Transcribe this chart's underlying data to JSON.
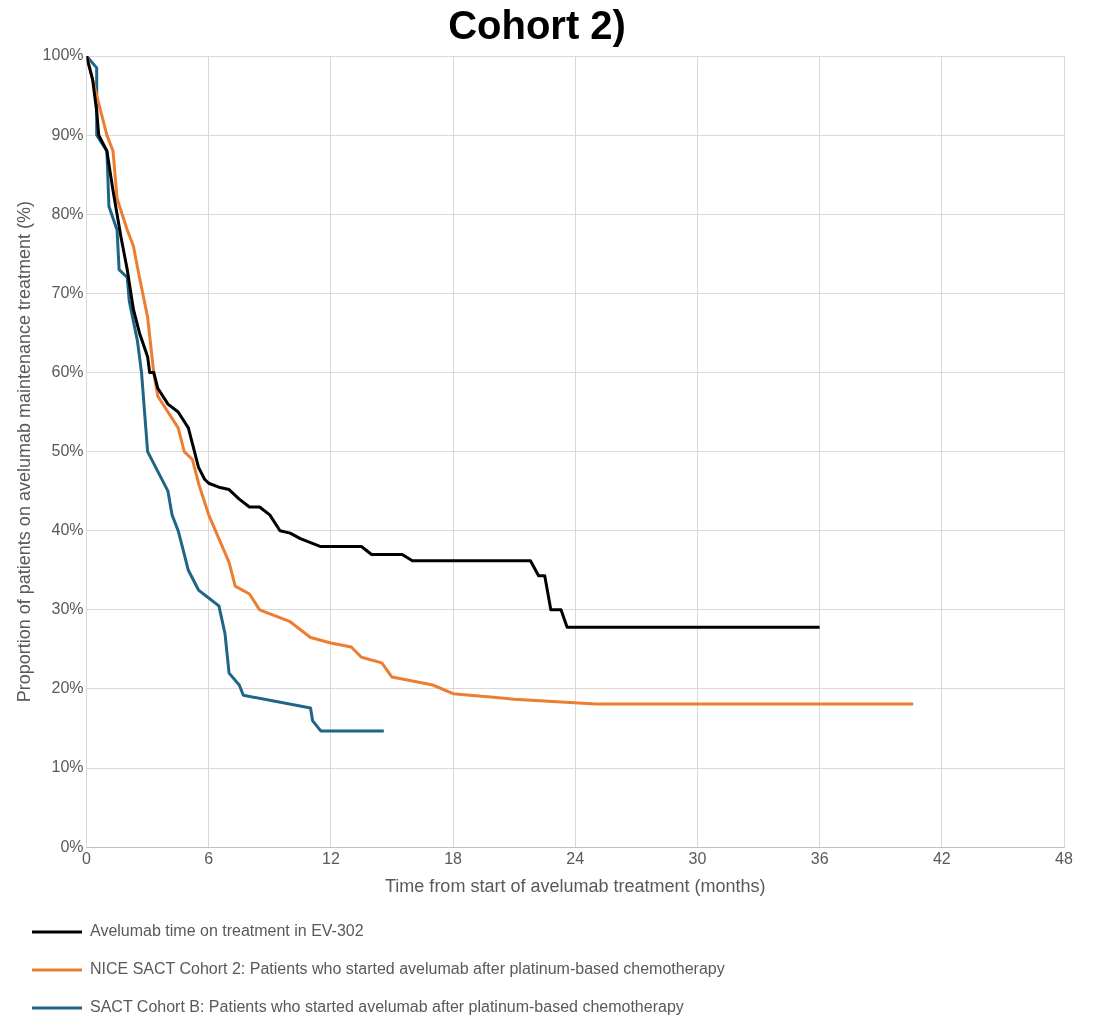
{
  "chart_data": {
    "type": "line",
    "title": "Cohort 2)",
    "xlabel": "Time from start of avelumab treatment (months)",
    "ylabel": "Proportion of patients on avelumab maintenance treatment (%)",
    "xlim": [
      0,
      48
    ],
    "xticks": [
      0,
      6,
      12,
      18,
      24,
      30,
      36,
      42,
      48
    ],
    "ylim": [
      0,
      100
    ],
    "yticks": [
      {
        "value": 0,
        "label": "0%"
      },
      {
        "value": 10,
        "label": "10%"
      },
      {
        "value": 20,
        "label": "20%"
      },
      {
        "value": 30,
        "label": "30%"
      },
      {
        "value": 40,
        "label": "40%"
      },
      {
        "value": 50,
        "label": "50%"
      },
      {
        "value": 60,
        "label": "60%"
      },
      {
        "value": 70,
        "label": "70%"
      },
      {
        "value": 80,
        "label": "80%"
      },
      {
        "value": 90,
        "label": "90%"
      },
      {
        "value": 100,
        "label": "100%"
      }
    ],
    "grid": true,
    "legend": "bottom",
    "marker": "none",
    "line_style": "solid",
    "series": [
      {
        "name": "Avelumab time on treatment in EV-302",
        "color": "#000000",
        "x": [
          0,
          0.3,
          0.5,
          0.6,
          1,
          1.3,
          1.5,
          1.7,
          2,
          2.3,
          2.6,
          3,
          3.1,
          3.3,
          3.5,
          4,
          4.5,
          5,
          5.2,
          5.5,
          5.8,
          6,
          6.5,
          7,
          7.5,
          8,
          8.5,
          9,
          9.5,
          10,
          10.5,
          11.5,
          13.5,
          14,
          15.5,
          16,
          21.8,
          22.2,
          22.5,
          22.8,
          23.3,
          23.6,
          36
        ],
        "values": [
          100,
          97,
          93,
          90,
          88,
          83,
          80,
          77,
          73,
          68,
          65,
          62,
          60,
          60,
          58,
          56,
          55,
          53,
          51,
          48,
          46.5,
          46,
          45.5,
          45.2,
          44,
          43,
          43,
          42,
          40,
          39.7,
          39,
          38,
          38,
          37,
          37,
          36.2,
          36.2,
          34.3,
          34.3,
          30,
          30,
          27.8,
          27.8
        ]
      },
      {
        "name": "NICE SACT Cohort 2: Patients who started avelumab after platinum-based chemotherapy",
        "color": "#ed7d31",
        "x": [
          0,
          0.5,
          1,
          1.3,
          1.5,
          2,
          2.3,
          2.6,
          3,
          3.3,
          3.5,
          4,
          4.5,
          4.8,
          5.2,
          5.5,
          6,
          6.5,
          7,
          7.3,
          8,
          8.5,
          10,
          11,
          12,
          13,
          13.5,
          14.5,
          15,
          17,
          18,
          21,
          25,
          40.6
        ],
        "values": [
          100,
          95,
          90,
          88,
          82,
          78,
          76,
          72,
          67,
          60,
          57,
          55,
          53,
          50,
          49,
          46,
          42,
          39,
          36,
          33,
          32,
          30,
          28.5,
          26.5,
          25.8,
          25.3,
          24,
          23.3,
          21.5,
          20.5,
          19.4,
          18.7,
          18.1,
          18.1
        ]
      },
      {
        "name": "SACT Cohort B: Patients who started avelumab after platinum-based chemotherapy",
        "color": "#1f6587",
        "x": [
          0,
          0.5,
          0.5,
          1,
          1.1,
          1.5,
          1.6,
          2,
          2.1,
          2.5,
          2.7,
          3,
          3.5,
          4,
          4.2,
          4.5,
          4.8,
          5,
          5.5,
          6,
          6.5,
          6.8,
          7,
          7.5,
          7.7,
          11,
          11.1,
          11.5,
          14.6
        ],
        "values": [
          100,
          98.5,
          90,
          88,
          81,
          78,
          73,
          72,
          69,
          64,
          60,
          50,
          47.5,
          45,
          42,
          40,
          37,
          35,
          32.5,
          31.5,
          30.5,
          27,
          22,
          20.5,
          19.2,
          17.6,
          16,
          14.7,
          14.7
        ]
      }
    ]
  }
}
